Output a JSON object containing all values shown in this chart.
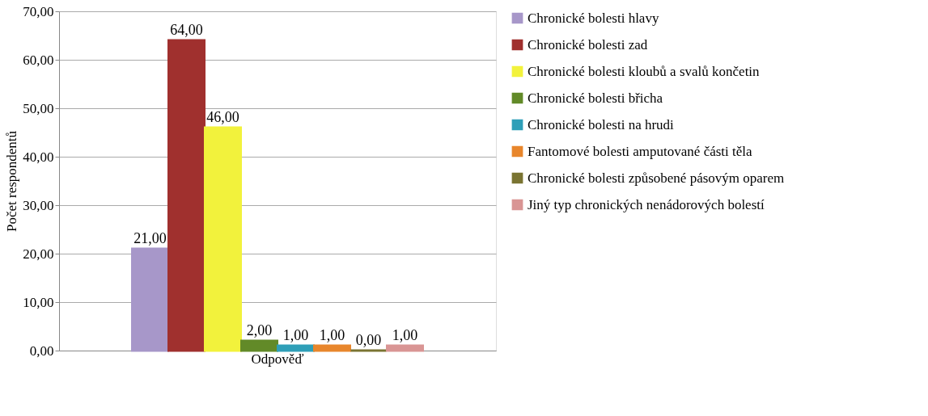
{
  "chart_data": {
    "type": "bar",
    "ylabel": "Počet respondentů",
    "categories": [
      "Odpověď"
    ],
    "series": [
      {
        "name": "Chronické bolesti hlavy",
        "color": "#a797c9",
        "values": [
          21
        ],
        "value_labels": [
          "21,00"
        ]
      },
      {
        "name": "Chronické bolesti zad",
        "color": "#a0302e",
        "values": [
          64
        ],
        "value_labels": [
          "64,00"
        ]
      },
      {
        "name": "Chronické bolesti kloubů a svalů končetin",
        "color": "#f2f23c",
        "values": [
          46
        ],
        "value_labels": [
          "46,00"
        ]
      },
      {
        "name": "Chronické bolesti břicha",
        "color": "#628a28",
        "values": [
          2
        ],
        "value_labels": [
          "2,00"
        ]
      },
      {
        "name": "Chronické bolesti na hrudi",
        "color": "#2f9fb8",
        "values": [
          1
        ],
        "value_labels": [
          "1,00"
        ]
      },
      {
        "name": "Fantomové bolesti amputované části těla",
        "color": "#e8862c",
        "values": [
          1
        ],
        "value_labels": [
          "1,00"
        ]
      },
      {
        "name": "Chronické bolesti způsobené pásovým oparem",
        "color": "#7a7432",
        "values": [
          0
        ],
        "value_labels": [
          "0,00"
        ]
      },
      {
        "name": "Jiný typ chronických nenádorových bolestí",
        "color": "#d99594",
        "values": [
          1
        ],
        "value_labels": [
          "1,00"
        ]
      }
    ],
    "ylim": [
      0,
      70
    ],
    "yticks": [
      {
        "value": 0,
        "label": "0,00"
      },
      {
        "value": 10,
        "label": "10,00"
      },
      {
        "value": 20,
        "label": "20,00"
      },
      {
        "value": 30,
        "label": "30,00"
      },
      {
        "value": 40,
        "label": "40,00"
      },
      {
        "value": 50,
        "label": "50,00"
      },
      {
        "value": 60,
        "label": "60,00"
      },
      {
        "value": 70,
        "label": "70,00"
      }
    ],
    "grid": "y",
    "legend": "right"
  }
}
